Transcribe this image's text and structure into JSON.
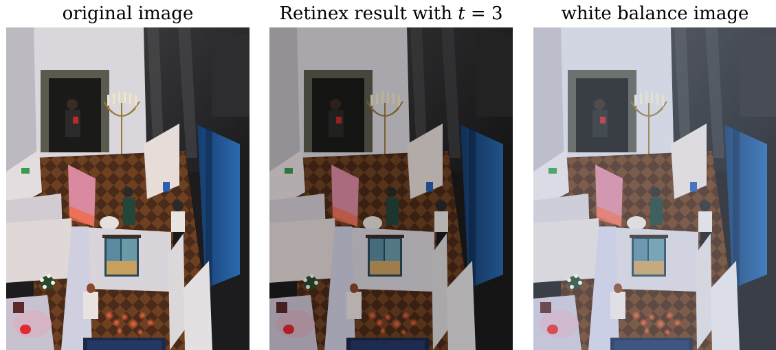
{
  "panels": [
    {
      "caption": "original image",
      "tone": "original"
    },
    {
      "caption_prefix": "Retinex result with ",
      "caption_var": "t",
      "caption_suffix": " = 3",
      "tone": "darker"
    },
    {
      "caption": "white balance image",
      "tone": "cool-bright"
    }
  ],
  "colors": {
    "background": "#ffffff",
    "caption_text": "#000000",
    "blue_panel": "#1f4f86",
    "white_wall": "#e8e8ee",
    "floor_brown": "#5a3520",
    "candle_red": "#e0302a"
  }
}
